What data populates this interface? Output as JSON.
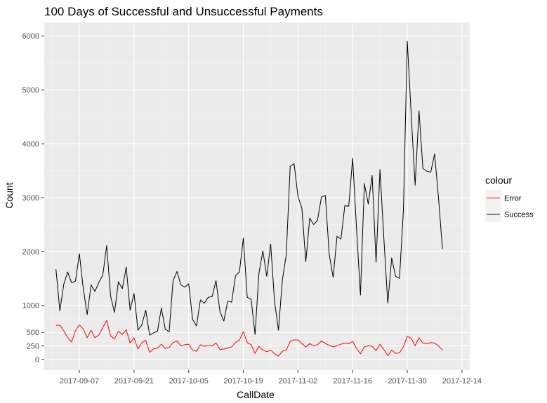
{
  "chart_data": {
    "type": "line",
    "title": "100 Days of Successful and Unsuccessful Payments",
    "xlabel": "CallDate",
    "ylabel": "Count",
    "x_start": "2017-09-01",
    "x_tick_labels": [
      "2017-09-07",
      "2017-09-21",
      "2017-10-05",
      "2017-10-19",
      "2017-11-02",
      "2017-11-16",
      "2017-11-30",
      "2017-12-14"
    ],
    "y_ticks": [
      0,
      250,
      500,
      1000,
      2000,
      3000,
      4000,
      5000,
      6000
    ],
    "y_tick_labels": [
      "0",
      "250",
      "500",
      "1000",
      "2000",
      "3000",
      "4000",
      "5000",
      "6000"
    ],
    "xlim": [
      "2017-08-29",
      "2017-12-16"
    ],
    "ylim": [
      -200,
      6250
    ],
    "grid": true,
    "legend": {
      "title": "colour",
      "position": "right",
      "items": [
        {
          "label": "Error",
          "color": "#ff0000"
        },
        {
          "label": "Success",
          "color": "#000000"
        }
      ]
    },
    "series": [
      {
        "name": "Success",
        "color": "#000000",
        "values": [
          1670,
          900,
          1390,
          1620,
          1420,
          1450,
          1960,
          1310,
          830,
          1380,
          1260,
          1430,
          1560,
          2110,
          1170,
          870,
          1440,
          1310,
          1710,
          910,
          1220,
          540,
          640,
          910,
          450,
          490,
          520,
          950,
          560,
          510,
          1460,
          1630,
          1380,
          1340,
          1400,
          740,
          620,
          1100,
          1040,
          1150,
          1160,
          1460,
          890,
          710,
          1080,
          1060,
          1550,
          1620,
          2250,
          1150,
          1110,
          460,
          1600,
          2010,
          1540,
          2140,
          1070,
          540,
          1470,
          1940,
          3580,
          3630,
          3020,
          2800,
          1810,
          2620,
          2500,
          2580,
          3010,
          3040,
          1950,
          1520,
          2280,
          2230,
          2850,
          2840,
          3730,
          2420,
          1190,
          3260,
          2880,
          3410,
          1800,
          3520,
          2240,
          1040,
          1880,
          1540,
          1500,
          2760,
          5900,
          4540,
          3230,
          4610,
          3540,
          3490,
          3470,
          3810,
          2990,
          2050
        ]
      },
      {
        "name": "Error",
        "color": "#ff0000",
        "values": [
          630,
          630,
          530,
          400,
          320,
          530,
          640,
          560,
          400,
          540,
          400,
          450,
          590,
          720,
          430,
          380,
          520,
          460,
          550,
          300,
          400,
          190,
          310,
          350,
          130,
          190,
          210,
          280,
          200,
          220,
          310,
          340,
          250,
          270,
          280,
          170,
          150,
          270,
          240,
          260,
          250,
          300,
          180,
          190,
          210,
          230,
          310,
          360,
          510,
          310,
          270,
          110,
          240,
          170,
          140,
          170,
          100,
          60,
          150,
          170,
          330,
          360,
          360,
          290,
          230,
          290,
          250,
          270,
          340,
          290,
          260,
          230,
          250,
          280,
          300,
          290,
          330,
          200,
          100,
          230,
          250,
          240,
          160,
          280,
          180,
          70,
          170,
          110,
          120,
          230,
          430,
          390,
          250,
          400,
          300,
          290,
          310,
          300,
          250,
          170
        ]
      }
    ]
  }
}
